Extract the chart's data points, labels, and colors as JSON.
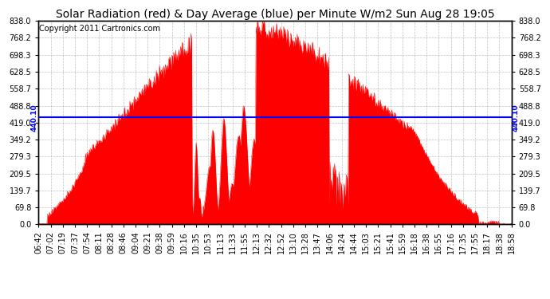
{
  "title": "Solar Radiation (red) & Day Average (blue) per Minute W/m2 Sun Aug 28 19:05",
  "copyright": "Copyright 2011 Cartronics.com",
  "average_line": 440.1,
  "average_label": "440.10",
  "ymin": 0.0,
  "ymax": 838.0,
  "yticks": [
    0.0,
    69.8,
    139.7,
    209.5,
    279.3,
    349.2,
    419.0,
    488.8,
    558.7,
    628.5,
    698.3,
    768.2,
    838.0
  ],
  "ytick_labels": [
    "0.0",
    "69.8",
    "139.7",
    "209.5",
    "279.3",
    "349.2",
    "419.0",
    "488.8",
    "558.7",
    "628.5",
    "698.3",
    "768.2",
    "838.0"
  ],
  "fill_color": "#FF0000",
  "line_color": "#0000FF",
  "background_color": "#FFFFFF",
  "grid_color": "#999999",
  "title_fontsize": 10,
  "copyright_fontsize": 7,
  "tick_fontsize": 7,
  "xtick_labels": [
    "06:42",
    "07:02",
    "07:19",
    "07:37",
    "07:54",
    "08:11",
    "08:28",
    "08:46",
    "09:04",
    "09:21",
    "09:38",
    "09:59",
    "10:16",
    "10:35",
    "10:53",
    "11:13",
    "11:33",
    "11:55",
    "12:13",
    "12:32",
    "12:52",
    "13:10",
    "13:28",
    "13:47",
    "14:06",
    "14:24",
    "14:44",
    "15:03",
    "15:21",
    "15:41",
    "15:59",
    "16:18",
    "16:38",
    "16:55",
    "17:16",
    "17:35",
    "17:55",
    "18:17",
    "18:38",
    "18:58"
  ],
  "n_points": 736,
  "seed": 123
}
